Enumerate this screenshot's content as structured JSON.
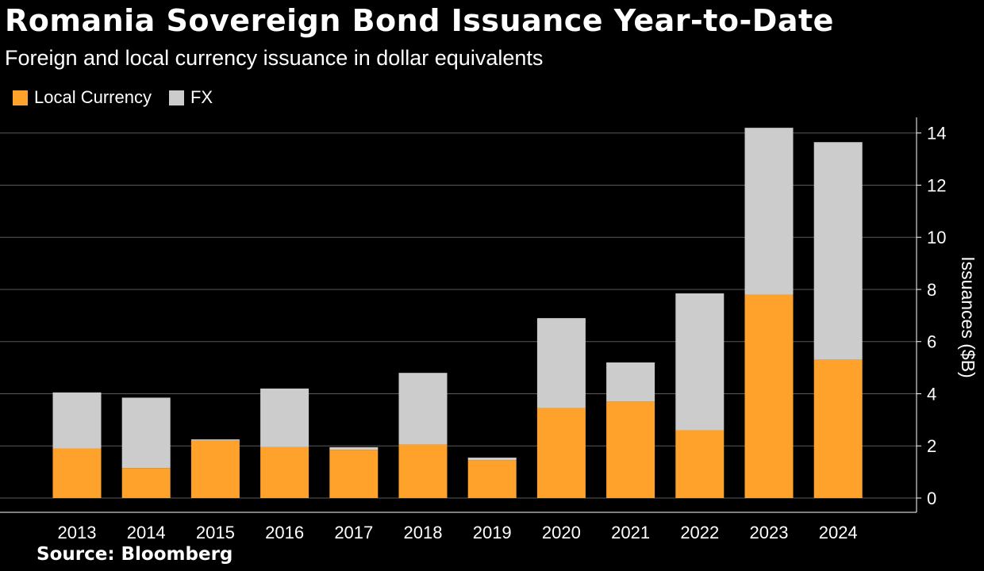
{
  "chart_data": {
    "type": "bar",
    "stacked": true,
    "title": "Romania Sovereign Bond Issuance Year-to-Date",
    "subtitle": "Foreign and local currency issuance in dollar equivalents",
    "categories": [
      "2013",
      "2014",
      "2015",
      "2016",
      "2017",
      "2018",
      "2019",
      "2020",
      "2021",
      "2022",
      "2023",
      "2024"
    ],
    "series": [
      {
        "name": "Local Currency",
        "color": "#ffa22b",
        "values": [
          1.9,
          1.15,
          2.2,
          1.95,
          1.85,
          2.05,
          1.45,
          3.45,
          3.7,
          2.6,
          7.8,
          5.3
        ]
      },
      {
        "name": "FX",
        "color": "#cccccc",
        "values": [
          2.15,
          2.7,
          0.05,
          2.25,
          0.1,
          2.75,
          0.1,
          3.45,
          1.5,
          5.25,
          6.4,
          8.35
        ]
      }
    ],
    "xlabel": "",
    "ylabel": "Issuances ($B)",
    "ylim": [
      0,
      14.6
    ],
    "yticks": [
      0,
      2,
      4,
      6,
      8,
      10,
      12,
      14
    ],
    "grid": true,
    "legend": "top-left",
    "yaxis_position": "right"
  },
  "source": "Source: Bloomberg"
}
